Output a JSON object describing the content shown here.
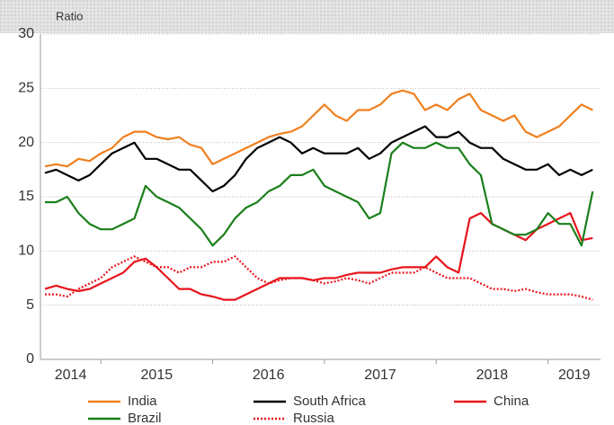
{
  "chart_data": {
    "type": "line",
    "y_label": "Ratio",
    "x": [
      2014.5,
      2014.6,
      2014.7,
      2014.8,
      2014.9,
      2015.0,
      2015.1,
      2015.2,
      2015.3,
      2015.4,
      2015.5,
      2015.6,
      2015.7,
      2015.8,
      2015.9,
      2016.0,
      2016.1,
      2016.2,
      2016.3,
      2016.4,
      2016.5,
      2016.6,
      2016.7,
      2016.8,
      2016.9,
      2017.0,
      2017.1,
      2017.2,
      2017.3,
      2017.4,
      2017.5,
      2017.6,
      2017.7,
      2017.8,
      2017.9,
      2018.0,
      2018.1,
      2018.2,
      2018.3,
      2018.4,
      2018.5,
      2018.6,
      2018.7,
      2018.8,
      2018.9,
      2019.0,
      2019.1,
      2019.2,
      2019.3,
      2019.4
    ],
    "series": [
      {
        "name": "India",
        "color": "#f07f1e",
        "line_style": "solid",
        "values": [
          17.8,
          18,
          17.8,
          18.5,
          18.3,
          19,
          19.5,
          20.5,
          21,
          21,
          20.5,
          20.3,
          20.5,
          19.8,
          19.5,
          18,
          18.5,
          19,
          19.5,
          20,
          20.5,
          20.8,
          21,
          21.5,
          22.5,
          23.5,
          22.5,
          22,
          23,
          23,
          23.5,
          24.5,
          24.8,
          24.5,
          23,
          23.5,
          23,
          24,
          24.5,
          23,
          22.5,
          22,
          22.5,
          21,
          20.5,
          21,
          21.5,
          22.5,
          23.5,
          23
        ]
      },
      {
        "name": "South Africa",
        "color": "#000000",
        "line_style": "solid",
        "values": [
          17.2,
          17.5,
          17,
          16.5,
          17,
          18,
          19,
          19.5,
          20,
          18.5,
          18.5,
          18,
          17.5,
          17.5,
          16.5,
          15.5,
          16,
          17,
          18.5,
          19.5,
          20,
          20.5,
          20,
          19,
          19.5,
          19,
          19,
          19,
          19.5,
          18.5,
          19,
          20,
          20.5,
          21,
          21.5,
          20.5,
          20.5,
          21,
          20,
          19.5,
          19.5,
          18.5,
          18,
          17.5,
          17.5,
          18,
          17,
          17.5,
          17,
          17.5
        ]
      },
      {
        "name": "China",
        "color": "#e8141b",
        "line_style": "solid",
        "values": [
          6.5,
          6.8,
          6.5,
          6.3,
          6.5,
          7,
          7.5,
          8,
          9,
          9.3,
          8.5,
          7.5,
          6.5,
          6.5,
          6,
          5.8,
          5.5,
          5.5,
          6,
          6.5,
          7,
          7.5,
          7.5,
          7.5,
          7.3,
          7.5,
          7.5,
          7.8,
          8,
          8,
          8,
          8.3,
          8.5,
          8.5,
          8.5,
          9.5,
          8.5,
          8,
          13,
          13.5,
          12.5,
          12,
          11.5,
          11,
          12,
          12.5,
          13,
          13.5,
          11,
          11.2
        ]
      },
      {
        "name": "Brazil",
        "color": "#1a7f1a",
        "line_style": "solid",
        "values": [
          14.5,
          14.5,
          15,
          13.5,
          12.5,
          12,
          12,
          12.5,
          13,
          16,
          15,
          14.5,
          14,
          13,
          12,
          10.5,
          11.5,
          13,
          14,
          14.5,
          15.5,
          16,
          17,
          17,
          17.5,
          16,
          15.5,
          15,
          14.5,
          13,
          13.5,
          19,
          20,
          19.5,
          19.5,
          20,
          19.5,
          19.5,
          18,
          17,
          12.5,
          12,
          11.5,
          11.5,
          12,
          13.5,
          12.5,
          12.5,
          10.5,
          15.5
        ]
      },
      {
        "name": "Russia",
        "color": "#e8141b",
        "line_style": "dotted",
        "values": [
          6,
          6,
          5.8,
          6.5,
          7,
          7.5,
          8.5,
          9,
          9.5,
          9,
          8.5,
          8.5,
          8,
          8.5,
          8.5,
          9,
          9,
          9.5,
          8.5,
          7.5,
          7,
          7.3,
          7.5,
          7.5,
          7.3,
          7,
          7.2,
          7.5,
          7.3,
          7,
          7.5,
          8,
          8,
          8,
          8.5,
          8,
          7.5,
          7.5,
          7.5,
          7,
          6.5,
          6.5,
          6.3,
          6.5,
          6.2,
          6,
          6,
          6,
          5.8,
          5.5
        ]
      }
    ],
    "xlim": [
      2014.46,
      2019.47
    ],
    "xticks": [
      2014,
      2015,
      2016,
      2017,
      2018,
      2019
    ],
    "ylim": [
      0,
      30
    ],
    "yticks": [
      0,
      5,
      10,
      15,
      20,
      25,
      30
    ],
    "grid": true
  }
}
